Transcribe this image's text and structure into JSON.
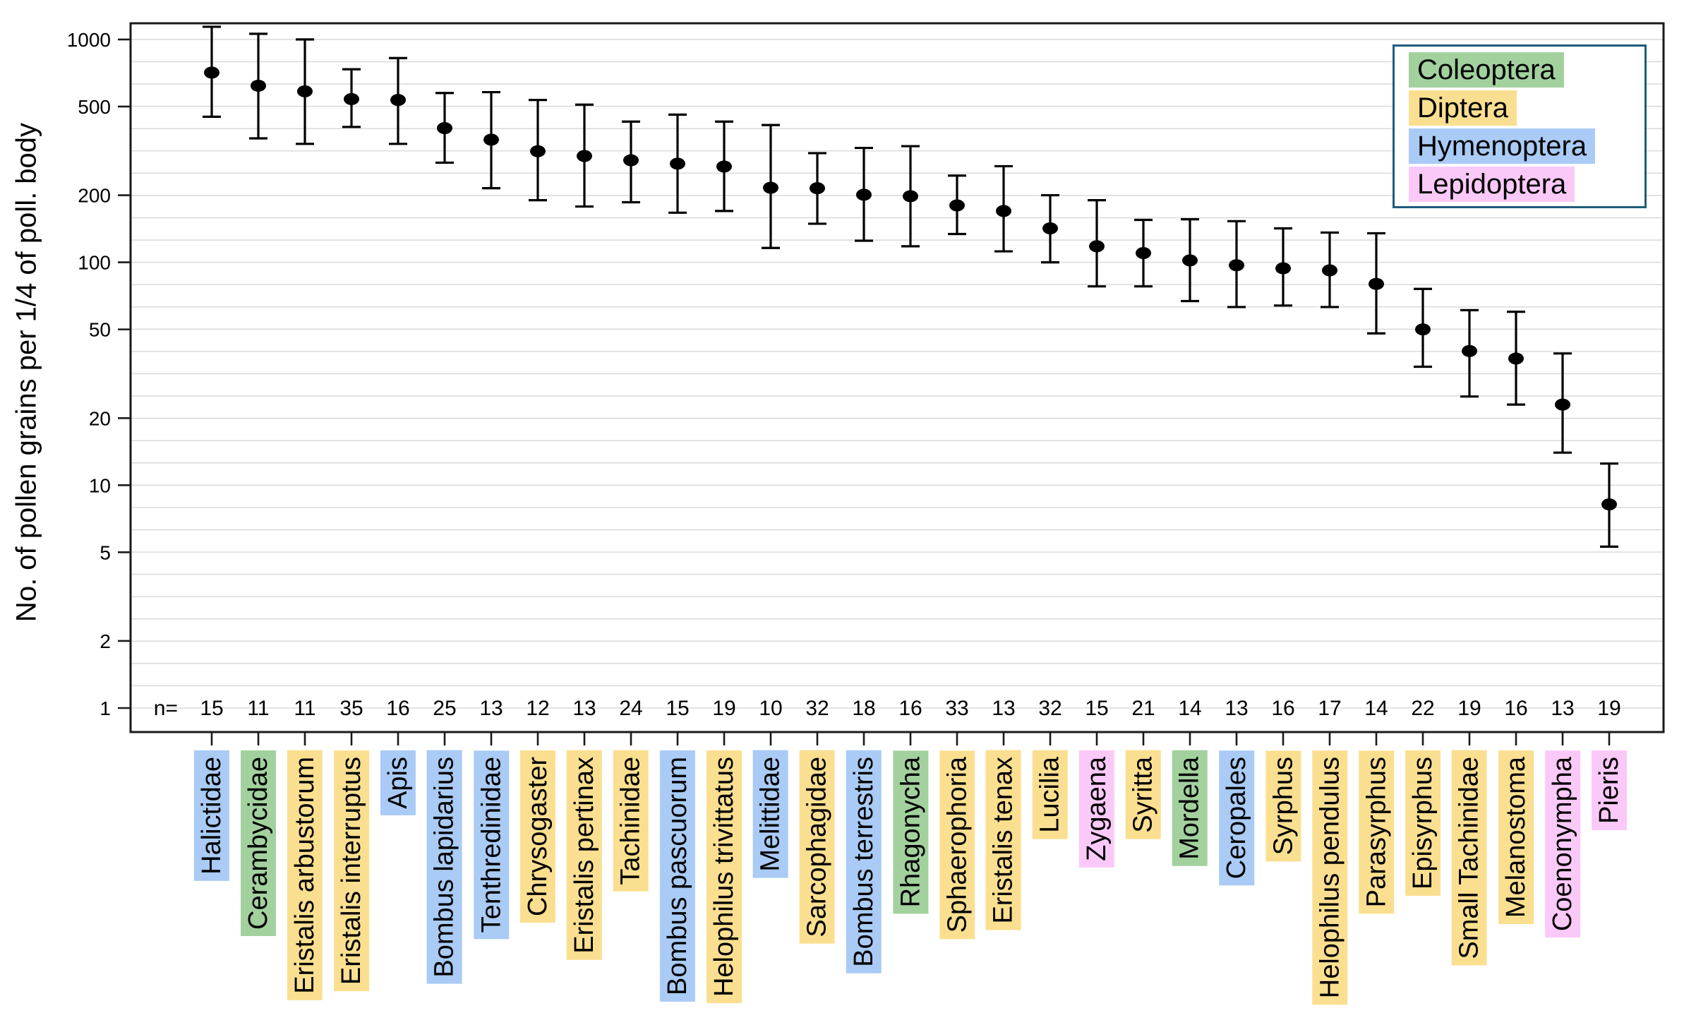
{
  "figure": {
    "y_axis_title": "No. of pollen grains per 1/4 of poll. body",
    "n_row_prefix": "n=",
    "background_color": "#ffffff",
    "axis_color": "#1a1a1a",
    "gridline_color": "#dcdcdc",
    "point_color": "#000000"
  },
  "legend": {
    "border_color": "#1f5c7a",
    "entries": [
      {
        "label": "Coleoptera",
        "color": "#a2d19e"
      },
      {
        "label": "Diptera",
        "color": "#fbdf90"
      },
      {
        "label": "Hymenoptera",
        "color": "#a9cbf5"
      },
      {
        "label": "Lepidoptera",
        "color": "#fbc9f8"
      }
    ]
  },
  "chart_data": {
    "type": "scatter",
    "subtype": "point-estimates-with-error-bars",
    "title": "",
    "xlabel": "",
    "ylabel": "No. of pollen grains per 1/4 of poll. body",
    "yscale": "log",
    "ylim": [
      1,
      1250
    ],
    "y_tick_labels": [
      1000,
      500,
      200,
      100,
      50,
      20,
      10,
      5,
      2,
      1
    ],
    "gridlines": "10 per decade, uniform in log space, from 1 to 1000",
    "legend_position": "top-right inside plot",
    "order_colors": {
      "Coleoptera": "#a2d19e",
      "Diptera": "#fbdf90",
      "Hymenoptera": "#a9cbf5",
      "Lepidoptera": "#fbc9f8"
    },
    "series": [
      {
        "name": "Halictidae",
        "order": "Hymenoptera",
        "n": 15,
        "mean": 710,
        "lo": 450,
        "hi": 1140
      },
      {
        "name": "Cerambycidae",
        "order": "Coleoptera",
        "n": 11,
        "mean": 620,
        "lo": 360,
        "hi": 1060
      },
      {
        "name": "Eristalis arbustorum",
        "order": "Diptera",
        "n": 11,
        "mean": 585,
        "lo": 340,
        "hi": 1000
      },
      {
        "name": "Eristalis interruptus",
        "order": "Diptera",
        "n": 35,
        "mean": 540,
        "lo": 405,
        "hi": 735
      },
      {
        "name": "Apis",
        "order": "Hymenoptera",
        "n": 16,
        "mean": 535,
        "lo": 340,
        "hi": 825
      },
      {
        "name": "Bombus lapidarius",
        "order": "Hymenoptera",
        "n": 25,
        "mean": 400,
        "lo": 280,
        "hi": 575
      },
      {
        "name": "Tenthredinidae",
        "order": "Hymenoptera",
        "n": 13,
        "mean": 355,
        "lo": 215,
        "hi": 580
      },
      {
        "name": "Chrysogaster",
        "order": "Diptera",
        "n": 12,
        "mean": 315,
        "lo": 190,
        "hi": 535
      },
      {
        "name": "Eristalis pertinax",
        "order": "Diptera",
        "n": 13,
        "mean": 300,
        "lo": 178,
        "hi": 510
      },
      {
        "name": "Tachinidae",
        "order": "Diptera",
        "n": 24,
        "mean": 287,
        "lo": 186,
        "hi": 428
      },
      {
        "name": "Bombus pascuorum",
        "order": "Hymenoptera",
        "n": 15,
        "mean": 277,
        "lo": 167,
        "hi": 460
      },
      {
        "name": "Helophilus trivittatus",
        "order": "Diptera",
        "n": 19,
        "mean": 269,
        "lo": 170,
        "hi": 428
      },
      {
        "name": "Melittidae",
        "order": "Hymenoptera",
        "n": 10,
        "mean": 216,
        "lo": 116,
        "hi": 413
      },
      {
        "name": "Sarcophagidae",
        "order": "Diptera",
        "n": 32,
        "mean": 215,
        "lo": 149,
        "hi": 309
      },
      {
        "name": "Bombus terrestris",
        "order": "Hymenoptera",
        "n": 18,
        "mean": 201,
        "lo": 125,
        "hi": 326
      },
      {
        "name": "Rhagonycha",
        "order": "Coleoptera",
        "n": 16,
        "mean": 198,
        "lo": 118,
        "hi": 332
      },
      {
        "name": "Sphaerophoria",
        "order": "Diptera",
        "n": 33,
        "mean": 180,
        "lo": 134,
        "hi": 245
      },
      {
        "name": "Eristalis tenax",
        "order": "Diptera",
        "n": 13,
        "mean": 170,
        "lo": 112,
        "hi": 270
      },
      {
        "name": "Lucilia",
        "order": "Diptera",
        "n": 32,
        "mean": 142,
        "lo": 100,
        "hi": 200
      },
      {
        "name": "Zygaena",
        "order": "Lepidoptera",
        "n": 15,
        "mean": 118,
        "lo": 78,
        "hi": 190
      },
      {
        "name": "Syritta",
        "order": "Diptera",
        "n": 21,
        "mean": 110,
        "lo": 78,
        "hi": 155
      },
      {
        "name": "Mordella",
        "order": "Coleoptera",
        "n": 14,
        "mean": 102,
        "lo": 67,
        "hi": 156
      },
      {
        "name": "Ceropales",
        "order": "Hymenoptera",
        "n": 13,
        "mean": 97,
        "lo": 63,
        "hi": 153
      },
      {
        "name": "Syrphus",
        "order": "Diptera",
        "n": 16,
        "mean": 94,
        "lo": 64,
        "hi": 142
      },
      {
        "name": "Helophilus pendulus",
        "order": "Diptera",
        "n": 17,
        "mean": 92,
        "lo": 63,
        "hi": 136
      },
      {
        "name": "Parasyrphus",
        "order": "Diptera",
        "n": 14,
        "mean": 80,
        "lo": 48,
        "hi": 135
      },
      {
        "name": "Episyrphus",
        "order": "Diptera",
        "n": 22,
        "mean": 50,
        "lo": 34,
        "hi": 76
      },
      {
        "name": "Small Tachinidae",
        "order": "Diptera",
        "n": 19,
        "mean": 40,
        "lo": 25,
        "hi": 61
      },
      {
        "name": "Melanostoma",
        "order": "Diptera",
        "n": 16,
        "mean": 37,
        "lo": 23,
        "hi": 60
      },
      {
        "name": "Coenonympha",
        "order": "Lepidoptera",
        "n": 13,
        "mean": 23,
        "lo": 14,
        "hi": 39
      },
      {
        "name": "Pieris",
        "order": "Lepidoptera",
        "n": 19,
        "mean": 8.2,
        "lo": 5.3,
        "hi": 12.5
      }
    ]
  }
}
